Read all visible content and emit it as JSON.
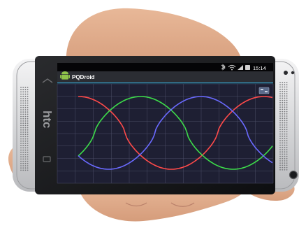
{
  "brand": {
    "logo_text": "htc"
  },
  "status_bar": {
    "time": "15:14",
    "icons": [
      "bluetooth-icon",
      "wifi-icon",
      "signal-icon",
      "battery-icon"
    ]
  },
  "app_bar": {
    "title": "PQDroid",
    "icon": "android-icon"
  },
  "plot": {
    "series_colors": [
      "#ff4a4a",
      "#3ddc4a",
      "#6a6aff"
    ],
    "background": "#1e1f33",
    "grid_color": "#4a4c66"
  },
  "colors": {
    "status_bar": "#050507",
    "app_bar": "#2b2d33",
    "app_bar_divider": "#3ab0e0",
    "phone_body": "#cfd0d2"
  }
}
